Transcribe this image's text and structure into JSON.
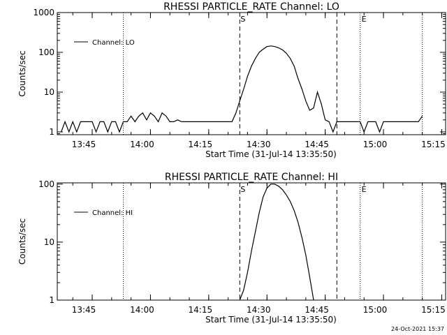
{
  "footer": {
    "timestamp": "24-Oct-2021 15:37"
  },
  "chart_data": [
    {
      "type": "line",
      "title": "RHESSI PARTICLE_RATE Channel: LO",
      "xlabel": "Start Time (31-Jul-14 13:35:50)",
      "ylabel": "Counts/sec",
      "yscale": "log",
      "xlim": [
        "13:36",
        "15:16"
      ],
      "ylim": [
        0.85,
        1000
      ],
      "xtick_labels": [
        "13:45",
        "14:00",
        "14:15",
        "14:30",
        "14:45",
        "15:00",
        "15:15"
      ],
      "ytick_labels": [
        "1",
        "10",
        "100",
        "1000"
      ],
      "legend": {
        "position": "top-left",
        "entries": [
          "Channel: LO"
        ]
      },
      "markers": {
        "dashed": [
          {
            "time": "14:23",
            "label": "S"
          },
          {
            "time": "14:48",
            "label": ""
          }
        ],
        "dotted": [
          {
            "time": "13:53",
            "label": ""
          },
          {
            "time": "14:54",
            "label": "E"
          },
          {
            "time": "15:10",
            "label": ""
          }
        ]
      },
      "series": [
        {
          "name": "Channel: LO",
          "x": [
            "13:37",
            "13:38",
            "13:39",
            "13:40",
            "13:41",
            "13:42",
            "13:43",
            "13:44",
            "13:45",
            "13:46",
            "13:47",
            "13:48",
            "13:49",
            "13:50",
            "13:51",
            "13:52",
            "13:53",
            "13:54",
            "13:55",
            "13:56",
            "13:57",
            "13:58",
            "13:59",
            "14:00",
            "14:01",
            "14:02",
            "14:03",
            "14:04",
            "14:05",
            "14:06",
            "14:07",
            "14:08",
            "14:09",
            "14:10",
            "14:11",
            "14:12",
            "14:13",
            "14:14",
            "14:15",
            "14:16",
            "14:17",
            "14:18",
            "14:19",
            "14:20",
            "14:21",
            "14:22",
            "14:23",
            "14:24",
            "14:25",
            "14:26",
            "14:27",
            "14:28",
            "14:29",
            "14:30",
            "14:31",
            "14:32",
            "14:33",
            "14:34",
            "14:35",
            "14:36",
            "14:37",
            "14:38",
            "14:39",
            "14:40",
            "14:41",
            "14:42",
            "14:43",
            "14:44",
            "14:45",
            "14:46",
            "14:47",
            "14:48",
            "14:49",
            "14:50",
            "14:51",
            "14:52",
            "14:53",
            "14:54",
            "14:55",
            "14:56",
            "14:57",
            "14:58",
            "14:59",
            "15:00",
            "15:01",
            "15:02",
            "15:03",
            "15:04",
            "15:05",
            "15:06",
            "15:07",
            "15:08",
            "15:09",
            "15:10"
          ],
          "y": [
            1,
            1.8,
            1,
            1.8,
            1,
            1.8,
            1.8,
            1.8,
            1.8,
            1,
            1.8,
            1.8,
            1,
            1.8,
            1.8,
            1,
            1.8,
            1.8,
            2.5,
            1.8,
            2.5,
            3,
            2,
            3,
            2.5,
            1.8,
            3,
            2.5,
            1.8,
            1.8,
            2,
            1.8,
            1.8,
            1.8,
            1.8,
            1.8,
            1.8,
            1.8,
            1.8,
            1.8,
            1.8,
            1.8,
            1.8,
            1.8,
            1.8,
            3,
            6,
            12,
            25,
            45,
            70,
            100,
            120,
            140,
            145,
            140,
            130,
            115,
            95,
            70,
            45,
            22,
            12,
            6,
            3.5,
            4,
            10,
            5,
            2,
            1.8,
            1,
            1.8,
            1.8,
            1.8,
            1.8,
            1.8,
            1.8,
            1.8,
            1,
            1.8,
            1.8,
            1.8,
            1,
            1.8,
            1.8,
            1.8,
            1.8,
            1.8,
            1.8,
            1.8,
            1.8,
            1.8,
            1.8,
            2.5
          ]
        }
      ]
    },
    {
      "type": "line",
      "title": "RHESSI PARTICLE_RATE Channel: HI",
      "xlabel": "Start Time (31-Jul-14 13:35:50)",
      "ylabel": "Counts/sec",
      "yscale": "log",
      "xlim": [
        "13:36",
        "15:16"
      ],
      "ylim": [
        1,
        105
      ],
      "xtick_labels": [
        "13:45",
        "14:00",
        "14:15",
        "14:30",
        "14:45",
        "15:00",
        "15:15"
      ],
      "ytick_labels": [
        "1",
        "10",
        "100"
      ],
      "legend": {
        "position": "top-left",
        "entries": [
          "Channel: HI"
        ]
      },
      "markers": {
        "dashed": [
          {
            "time": "14:23",
            "label": "S"
          },
          {
            "time": "14:48",
            "label": ""
          }
        ],
        "dotted": [
          {
            "time": "13:53",
            "label": ""
          },
          {
            "time": "14:54",
            "label": "E"
          },
          {
            "time": "15:10",
            "label": ""
          }
        ]
      },
      "series": [
        {
          "name": "Channel: HI",
          "x": [
            "14:23",
            "14:24",
            "14:25",
            "14:26",
            "14:27",
            "14:28",
            "14:29",
            "14:30",
            "14:31",
            "14:32",
            "14:33",
            "14:34",
            "14:35",
            "14:36",
            "14:37",
            "14:38",
            "14:39",
            "14:40",
            "14:41",
            "14:42"
          ],
          "y": [
            1,
            1.5,
            3,
            7,
            15,
            32,
            60,
            85,
            100,
            100,
            92,
            80,
            65,
            50,
            35,
            22,
            12,
            6,
            2.5,
            1
          ]
        }
      ]
    }
  ]
}
